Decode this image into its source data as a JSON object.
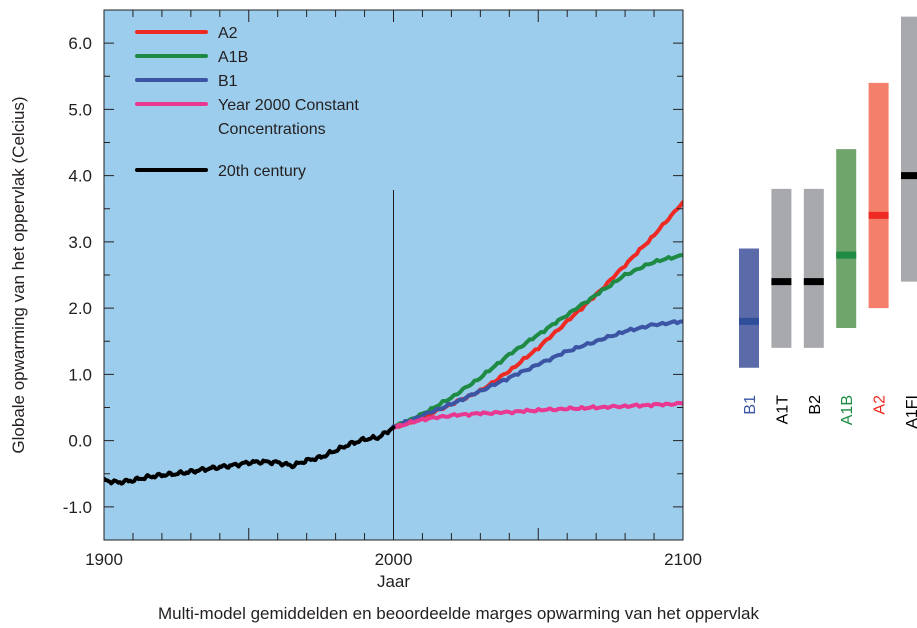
{
  "chart_data": {
    "type": "line",
    "title": "",
    "caption": "Multi-model gemiddelden en beoordeelde marges opwarming van het oppervlak",
    "xlabel": "Jaar",
    "ylabel": "Globale opwarming van het oppervlak (Celcius)",
    "xlim": [
      1900,
      2100
    ],
    "ylim": [
      -1.5,
      6.5
    ],
    "x_ticks": [
      1900,
      2000,
      2100
    ],
    "y_ticks": [
      "-1.0",
      "0.0",
      "1.0",
      "2.0",
      "3.0",
      "4.0",
      "5.0",
      "6.0"
    ],
    "divider_year": 2000,
    "plot_background": "#9dcdec",
    "legend_position": "top-left",
    "series": [
      {
        "name": "A2",
        "color": "#ee2a24",
        "x": [
          2000,
          2010,
          2020,
          2030,
          2040,
          2050,
          2060,
          2070,
          2080,
          2090,
          2100
        ],
        "y": [
          0.2,
          0.35,
          0.55,
          0.75,
          1.05,
          1.4,
          1.8,
          2.2,
          2.65,
          3.1,
          3.6
        ]
      },
      {
        "name": "A1B",
        "color": "#1e8a44",
        "x": [
          2000,
          2010,
          2020,
          2030,
          2040,
          2050,
          2060,
          2070,
          2080,
          2090,
          2100
        ],
        "y": [
          0.2,
          0.4,
          0.65,
          0.95,
          1.3,
          1.6,
          1.9,
          2.2,
          2.5,
          2.7,
          2.8
        ]
      },
      {
        "name": "B1",
        "color": "#3b54a3",
        "x": [
          2000,
          2010,
          2020,
          2030,
          2040,
          2050,
          2060,
          2070,
          2080,
          2090,
          2100
        ],
        "y": [
          0.2,
          0.38,
          0.55,
          0.75,
          0.95,
          1.15,
          1.35,
          1.5,
          1.65,
          1.75,
          1.8
        ]
      },
      {
        "name": "Year 2000 Constant",
        "name_line2": "Concentrations",
        "color": "#e8388f",
        "x": [
          2000,
          2010,
          2020,
          2030,
          2040,
          2050,
          2060,
          2070,
          2080,
          2090,
          2100
        ],
        "y": [
          0.2,
          0.32,
          0.38,
          0.41,
          0.43,
          0.46,
          0.48,
          0.5,
          0.52,
          0.54,
          0.56
        ]
      },
      {
        "name": "20th century",
        "color": "#000000",
        "x": [
          1900,
          1905,
          1910,
          1915,
          1920,
          1925,
          1930,
          1935,
          1940,
          1945,
          1950,
          1955,
          1960,
          1965,
          1970,
          1975,
          1980,
          1985,
          1990,
          1995,
          2000
        ],
        "y": [
          -0.6,
          -0.63,
          -0.6,
          -0.55,
          -0.52,
          -0.5,
          -0.47,
          -0.43,
          -0.4,
          -0.37,
          -0.33,
          -0.32,
          -0.33,
          -0.38,
          -0.3,
          -0.25,
          -0.15,
          -0.05,
          0.02,
          0.05,
          0.2
        ]
      }
    ],
    "ranges": [
      {
        "name": "B1",
        "low": 1.1,
        "high": 2.9,
        "best": 1.8,
        "bar_color": "#5b6aa8",
        "mark_color": "#2e4e9a",
        "label_color": "#3b54a3"
      },
      {
        "name": "A1T",
        "low": 1.4,
        "high": 3.8,
        "best": 2.4,
        "bar_color": "#a7a9ac",
        "mark_color": "#000000",
        "label_color": "#000000"
      },
      {
        "name": "B2",
        "low": 1.4,
        "high": 3.8,
        "best": 2.4,
        "bar_color": "#a7a9ac",
        "mark_color": "#000000",
        "label_color": "#000000"
      },
      {
        "name": "A1B",
        "low": 1.7,
        "high": 4.4,
        "best": 2.8,
        "bar_color": "#6fa56b",
        "mark_color": "#1e8a44",
        "label_color": "#1e8a44"
      },
      {
        "name": "A2",
        "low": 2.0,
        "high": 5.4,
        "best": 3.4,
        "bar_color": "#f47f6a",
        "mark_color": "#ee2a24",
        "label_color": "#ee2a24"
      },
      {
        "name": "A1FI",
        "low": 2.4,
        "high": 6.4,
        "best": 4.0,
        "bar_color": "#a7a9ac",
        "mark_color": "#000000",
        "label_color": "#000000"
      }
    ]
  }
}
